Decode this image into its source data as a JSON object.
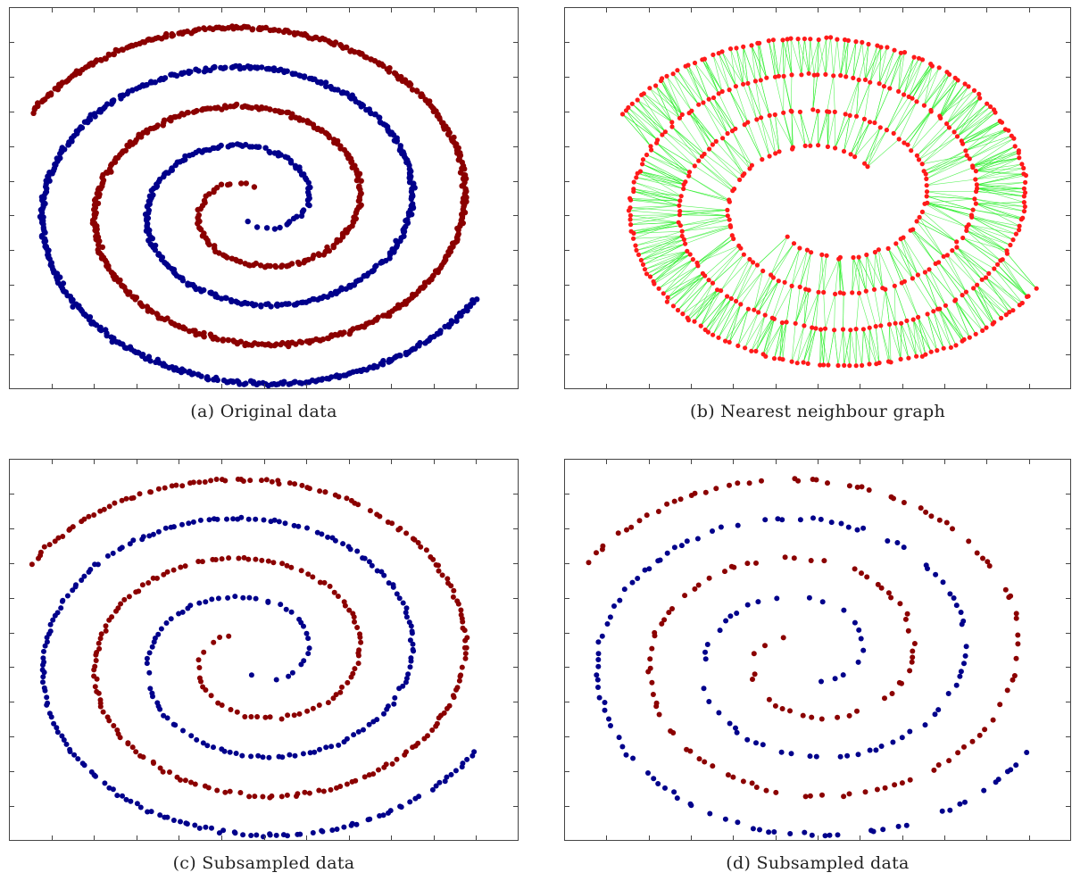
{
  "colors": {
    "class_a": "#8b0000",
    "class_b": "#00008b",
    "graph_node": "#ff1a1a",
    "graph_edge": "#22ee22",
    "frame": "#444444"
  },
  "chart_data": [
    {
      "type": "scatter",
      "caption": "(a) Original data",
      "series": [],
      "sampling": "dense",
      "xlim": [
        -1,
        1
      ],
      "ylim": [
        -1,
        1
      ],
      "grid": false,
      "tick_labels": false
    },
    {
      "type": "scatter",
      "caption": "(b) Nearest neighbour graph",
      "series": [],
      "sampling": "graph",
      "xlim": [
        -1,
        1
      ],
      "ylim": [
        -1,
        1
      ],
      "grid": false,
      "tick_labels": false
    },
    {
      "type": "scatter",
      "caption": "(c) Subsampled data",
      "series": [],
      "sampling": "medium",
      "xlim": [
        -1,
        1
      ],
      "ylim": [
        -1,
        1
      ],
      "grid": false,
      "tick_labels": false
    },
    {
      "type": "scatter",
      "caption": "(d) Subsampled data",
      "series": [],
      "sampling": "sparse",
      "xlim": [
        -1,
        1
      ],
      "ylim": [
        -1,
        1
      ],
      "grid": false,
      "tick_labels": false
    }
  ]
}
